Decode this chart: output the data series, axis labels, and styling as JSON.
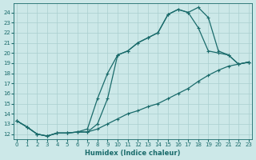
{
  "bg_color": "#cce8e8",
  "grid_color": "#aacfcf",
  "line_color": "#1a6b6b",
  "xlim": [
    -0.3,
    23.3
  ],
  "ylim": [
    11.5,
    24.9
  ],
  "yticks": [
    12,
    13,
    14,
    15,
    16,
    17,
    18,
    19,
    20,
    21,
    22,
    23,
    24
  ],
  "xticks": [
    0,
    1,
    2,
    3,
    4,
    5,
    6,
    7,
    8,
    9,
    10,
    11,
    12,
    13,
    14,
    15,
    16,
    17,
    18,
    19,
    20,
    21,
    22,
    23
  ],
  "xlabel": "Humidex (Indice chaleur)",
  "line1_x": [
    0,
    1,
    2,
    3,
    4,
    5,
    6,
    7,
    8,
    9,
    10,
    11,
    12,
    13,
    14,
    15,
    16,
    17,
    18,
    19,
    20,
    21,
    22,
    23
  ],
  "line1_y": [
    13.3,
    12.7,
    12.0,
    11.8,
    12.1,
    12.1,
    12.2,
    12.2,
    12.5,
    13.0,
    13.5,
    14.0,
    14.3,
    14.7,
    15.0,
    15.5,
    16.0,
    16.5,
    17.2,
    17.8,
    18.3,
    18.7,
    18.9,
    19.1
  ],
  "line2_x": [
    0,
    1,
    2,
    3,
    4,
    5,
    6,
    7,
    8,
    9,
    10,
    11,
    12,
    13,
    14,
    15,
    16,
    17,
    18,
    19,
    20,
    21,
    22,
    23
  ],
  "line2_y": [
    13.3,
    12.7,
    12.0,
    11.8,
    12.1,
    12.1,
    12.2,
    12.5,
    15.5,
    18.0,
    19.8,
    20.2,
    21.0,
    21.5,
    22.0,
    23.8,
    24.3,
    24.0,
    22.5,
    20.2,
    20.0,
    19.8,
    18.9,
    19.1
  ],
  "line3_x": [
    0,
    1,
    2,
    3,
    4,
    5,
    6,
    7,
    8,
    9,
    10,
    11,
    12,
    13,
    14,
    15,
    16,
    17,
    18,
    19,
    20,
    21,
    22,
    23
  ],
  "line3_y": [
    13.3,
    12.7,
    12.0,
    11.8,
    12.1,
    12.1,
    12.2,
    12.2,
    13.0,
    15.5,
    19.8,
    20.2,
    21.0,
    21.5,
    22.0,
    23.8,
    24.3,
    24.0,
    24.5,
    23.5,
    20.2,
    19.8,
    18.9,
    19.1
  ]
}
